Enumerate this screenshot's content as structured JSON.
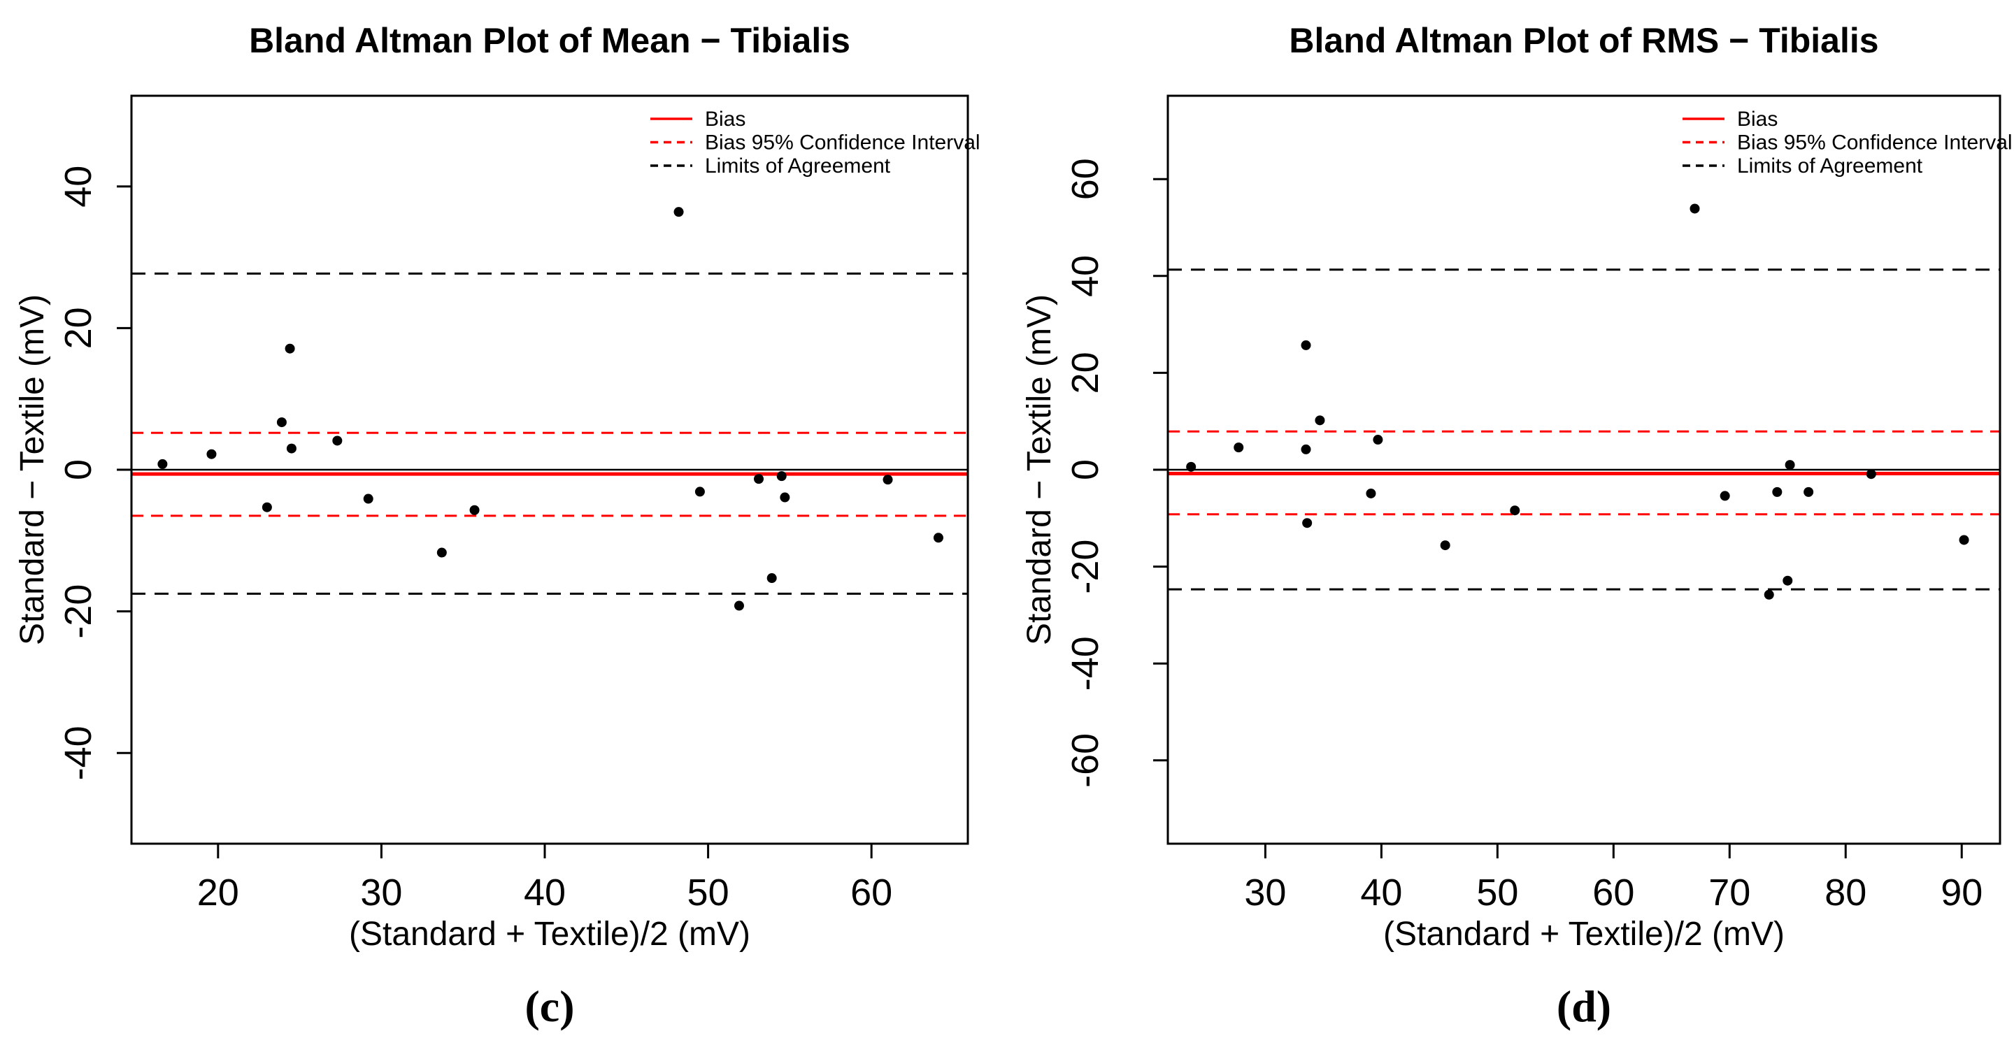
{
  "figure": {
    "background": "#ffffff",
    "captions": [
      {
        "label": "(c)"
      },
      {
        "label": "(d)"
      }
    ]
  },
  "colors": {
    "bias_line": "#ff0000",
    "confidence_line": "#ff0000",
    "loa_line": "#000000",
    "zero_line": "#000000",
    "points": "#000000",
    "text": "#000000"
  },
  "legend": {
    "position": "top-right",
    "items": [
      {
        "label": "Bias",
        "color": "#ff0000",
        "style": "solid"
      },
      {
        "label": "Bias 95% Confidence Interval",
        "color": "#ff0000",
        "style": "dashed"
      },
      {
        "label": "Limits of Agreement",
        "color": "#000000",
        "style": "dashed"
      }
    ]
  },
  "chart_data": [
    {
      "type": "scatter",
      "panel": "c",
      "title": "Bland Altman Plot of Mean − Tibialis",
      "xlabel": "(Standard + Textile)/2 (mV)",
      "ylabel": "Standard − Textile (mV)",
      "xlim": [
        14.7,
        65.9
      ],
      "ylim": [
        -52.8,
        52.8
      ],
      "xticks": [
        20,
        30,
        40,
        50,
        60
      ],
      "yticks": [
        -40,
        -20,
        0,
        20,
        40
      ],
      "grid": false,
      "lines": {
        "zero": 0,
        "bias": -0.6,
        "ci_upper": 5.2,
        "ci_lower": -6.5,
        "loa_upper": 27.7,
        "loa_lower": -17.5
      },
      "points": [
        [
          16.6,
          0.8
        ],
        [
          19.6,
          2.2
        ],
        [
          23.0,
          -5.3
        ],
        [
          23.9,
          6.7
        ],
        [
          24.4,
          17.1
        ],
        [
          24.5,
          3.0
        ],
        [
          27.3,
          4.1
        ],
        [
          29.2,
          -4.1
        ],
        [
          33.7,
          -11.7
        ],
        [
          35.7,
          -5.7
        ],
        [
          48.2,
          36.4
        ],
        [
          49.5,
          -3.1
        ],
        [
          51.9,
          -19.2
        ],
        [
          53.1,
          -1.3
        ],
        [
          53.9,
          -15.3
        ],
        [
          54.5,
          -0.9
        ],
        [
          54.7,
          -3.9
        ],
        [
          61.0,
          -1.4
        ],
        [
          64.1,
          -9.6
        ]
      ]
    },
    {
      "type": "scatter",
      "panel": "d",
      "title": "Bland Altman Plot of RMS − Tibialis",
      "xlabel": "(Standard + Textile)/2 (mV)",
      "ylabel": "Standard − Textile (mV)",
      "xlim": [
        21.6,
        93.3
      ],
      "ylim": [
        -77.2,
        77.2
      ],
      "xticks": [
        30,
        40,
        50,
        60,
        70,
        80,
        90
      ],
      "yticks": [
        -60,
        -40,
        -20,
        0,
        20,
        40,
        60
      ],
      "grid": false,
      "lines": {
        "zero": 0,
        "bias": -0.8,
        "ci_upper": 7.9,
        "ci_lower": -9.2,
        "loa_upper": 41.3,
        "loa_lower": -24.7
      },
      "points": [
        [
          23.6,
          0.6
        ],
        [
          27.7,
          4.6
        ],
        [
          33.5,
          4.2
        ],
        [
          33.5,
          25.7
        ],
        [
          33.6,
          -11.0
        ],
        [
          34.7,
          10.2
        ],
        [
          39.1,
          -4.9
        ],
        [
          39.7,
          6.2
        ],
        [
          45.5,
          -15.6
        ],
        [
          51.5,
          -8.4
        ],
        [
          67.0,
          53.9
        ],
        [
          69.6,
          -5.4
        ],
        [
          73.4,
          -25.8
        ],
        [
          74.1,
          -4.6
        ],
        [
          75.0,
          -22.9
        ],
        [
          75.2,
          1.0
        ],
        [
          76.8,
          -4.6
        ],
        [
          82.2,
          -0.9
        ],
        [
          90.2,
          -14.5
        ]
      ]
    }
  ]
}
